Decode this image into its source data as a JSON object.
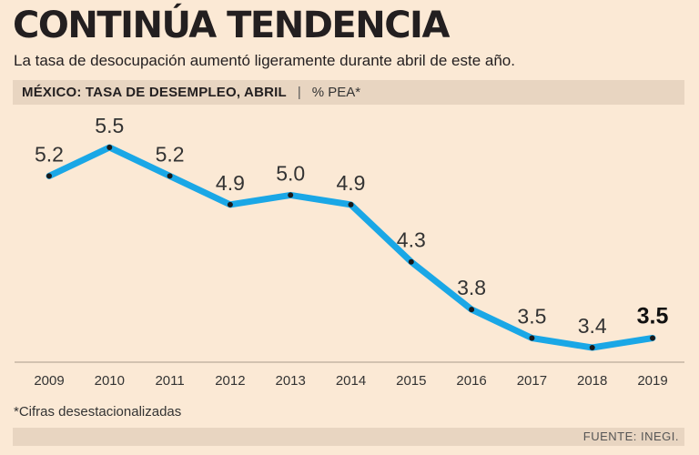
{
  "header": {
    "title": "CONTINÚA TENDENCIA",
    "subtitle": "La tasa de desocupación aumentó ligeramente durante abril de este año.",
    "section_label": "MÉXICO: TASA DE DESEMPLEO, ABRIL",
    "section_separator": "|",
    "unit": "% PEA*"
  },
  "chart_data": {
    "type": "line",
    "categories": [
      "2009",
      "2010",
      "2011",
      "2012",
      "2013",
      "2014",
      "2015",
      "2016",
      "2017",
      "2018",
      "2019"
    ],
    "values": [
      5.2,
      5.5,
      5.2,
      4.9,
      5.0,
      4.9,
      4.3,
      3.8,
      3.5,
      3.4,
      3.5
    ],
    "data_labels": [
      "5.2",
      "5.5",
      "5.2",
      "4.9",
      "5.0",
      "4.9",
      "4.3",
      "3.8",
      "3.5",
      "3.4",
      "3.5"
    ],
    "highlight_last": true,
    "line_color": "#1aa7e6",
    "marker_color": "#1a1a1a",
    "ylim": [
      3.0,
      5.8
    ],
    "grid": false,
    "xlabel": "",
    "ylabel": ""
  },
  "footnote": "*Cifras desestacionalizadas",
  "source": "FUENTE: INEGI."
}
